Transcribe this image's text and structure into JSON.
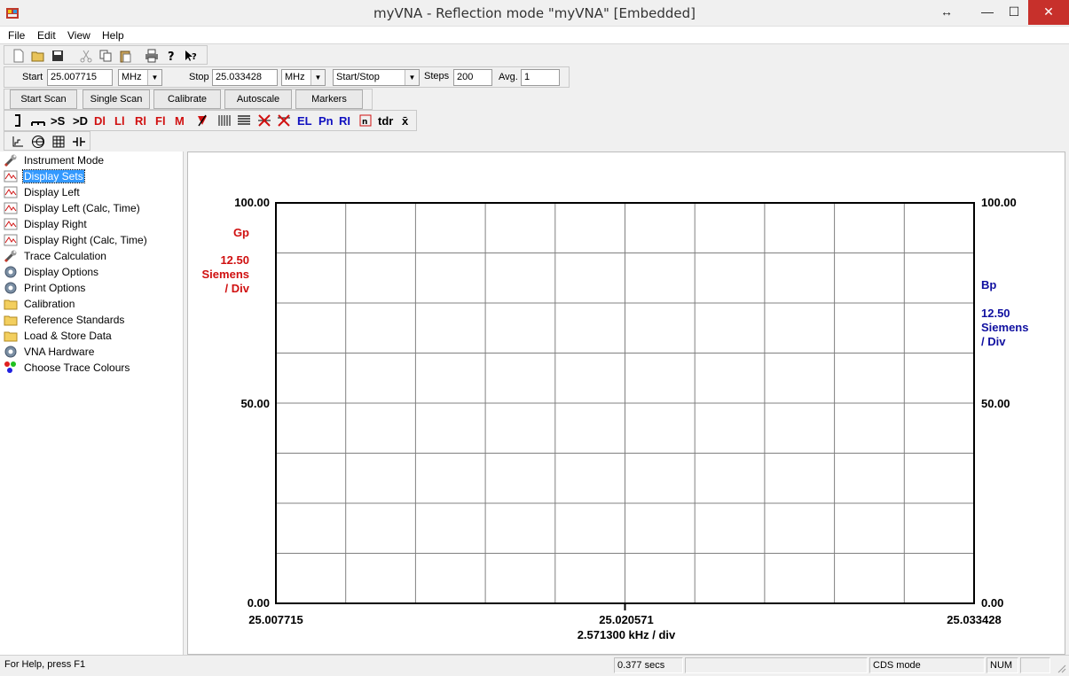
{
  "window": {
    "title": "myVNA - Reflection mode \"myVNA\" [Embedded]",
    "restore_glyph": "↔",
    "minimize_glyph": "—",
    "maximize_glyph": "☐",
    "close_glyph": "✕"
  },
  "menu": [
    "File",
    "Edit",
    "View",
    "Help"
  ],
  "scan_bar": {
    "start_label": "Start",
    "start_value": "25.007715",
    "start_unit": "MHz",
    "stop_label": "Stop",
    "stop_value": "25.033428",
    "stop_unit": "MHz",
    "mode": "Start/Stop",
    "steps_label": "Steps",
    "steps_value": "200",
    "avg_label": "Avg.",
    "avg_value": "1"
  },
  "buttons": {
    "start_scan": "Start Scan",
    "single_scan": "Single Scan",
    "calibrate": "Calibrate",
    "autoscale": "Autoscale",
    "markers": "Markers"
  },
  "tool_labels": {
    "s": ">S",
    "d": ">D",
    "dl": "Dl",
    "ll": "Ll",
    "rl": "Rl",
    "fl": "Fl",
    "m": "M",
    "el": "EL",
    "pn": "Pn",
    "ri": "RI",
    "tdr": "tdr",
    "xbar": "x̄"
  },
  "tree": [
    {
      "label": "Instrument Mode",
      "icon": "wrench-icon"
    },
    {
      "label": "Display Sets",
      "icon": "trace-icon",
      "selected": true
    },
    {
      "label": "Display Left",
      "icon": "trace-icon"
    },
    {
      "label": "Display Left (Calc, Time)",
      "icon": "trace-icon"
    },
    {
      "label": "Display Right",
      "icon": "trace-icon"
    },
    {
      "label": "Display Right (Calc, Time)",
      "icon": "trace-icon"
    },
    {
      "label": "Trace Calculation",
      "icon": "wrench-icon"
    },
    {
      "label": "Display Options",
      "icon": "gear-icon"
    },
    {
      "label": "Print Options",
      "icon": "gear-icon"
    },
    {
      "label": "Calibration",
      "icon": "folder-icon"
    },
    {
      "label": "Reference Standards",
      "icon": "folder-icon"
    },
    {
      "label": "Load & Store Data",
      "icon": "folder-icon"
    },
    {
      "label": "VNA Hardware",
      "icon": "gear-icon"
    },
    {
      "label": "Choose Trace Colours",
      "icon": "colours-icon"
    }
  ],
  "chart": {
    "left_top": "100.00",
    "left_mid": "50.00",
    "left_bottom": "0.00",
    "right_top": "100.00",
    "right_mid": "50.00",
    "right_bottom": "0.00",
    "left_param": "Gp",
    "left_scale": "12.50",
    "left_unit": "Siemens",
    "left_div": "/ Div",
    "right_param": "Bp",
    "right_scale": "12.50",
    "right_unit": "Siemens",
    "right_div": "/ Div",
    "x_left": "25.007715",
    "x_mid": "25.020571",
    "x_right": "25.033428",
    "x_div": "2.571300 kHz / div",
    "colors": {
      "left": "#d01010",
      "right": "#1010a0"
    }
  },
  "status": {
    "help": "For Help, press F1",
    "time": "0.377 secs",
    "mode": "CDS mode",
    "num": "NUM"
  }
}
